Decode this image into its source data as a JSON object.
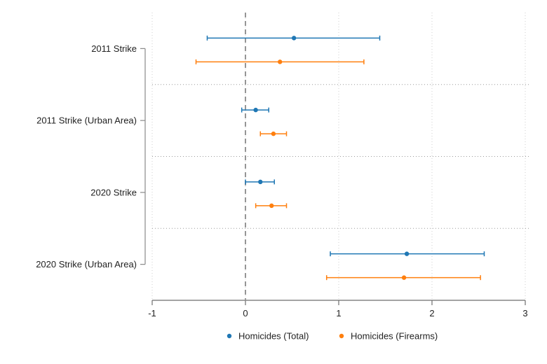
{
  "chart_data": {
    "type": "coefficient-plot",
    "orientation": "horizontal",
    "categories": [
      "2011 Strike",
      "2011 Strike (Urban Area)",
      "2020 Strike",
      "2020 Strike (Urban Area)"
    ],
    "x_ticks": [
      -1,
      0,
      1,
      2,
      3
    ],
    "x_tick_labels": [
      "-1",
      "0",
      "1",
      "2",
      "3"
    ],
    "xlim": [
      -1,
      3
    ],
    "reference_line_x": 0,
    "grid": true,
    "legend_position": "bottom",
    "series": [
      {
        "name": "Homicides (Total)",
        "color": "#1f77b4",
        "points": [
          {
            "estimate": 0.52,
            "low": -0.41,
            "high": 1.44
          },
          {
            "estimate": 0.11,
            "low": -0.04,
            "high": 0.25
          },
          {
            "estimate": 0.16,
            "low": 0.0,
            "high": 0.31
          },
          {
            "estimate": 1.73,
            "low": 0.91,
            "high": 2.56
          }
        ]
      },
      {
        "name": "Homicides (Firearms)",
        "color": "#ff7f0e",
        "points": [
          {
            "estimate": 0.37,
            "low": -0.53,
            "high": 1.27
          },
          {
            "estimate": 0.3,
            "low": 0.16,
            "high": 0.44
          },
          {
            "estimate": 0.28,
            "low": 0.11,
            "high": 0.44
          },
          {
            "estimate": 1.7,
            "low": 0.87,
            "high": 2.52
          }
        ]
      }
    ]
  }
}
